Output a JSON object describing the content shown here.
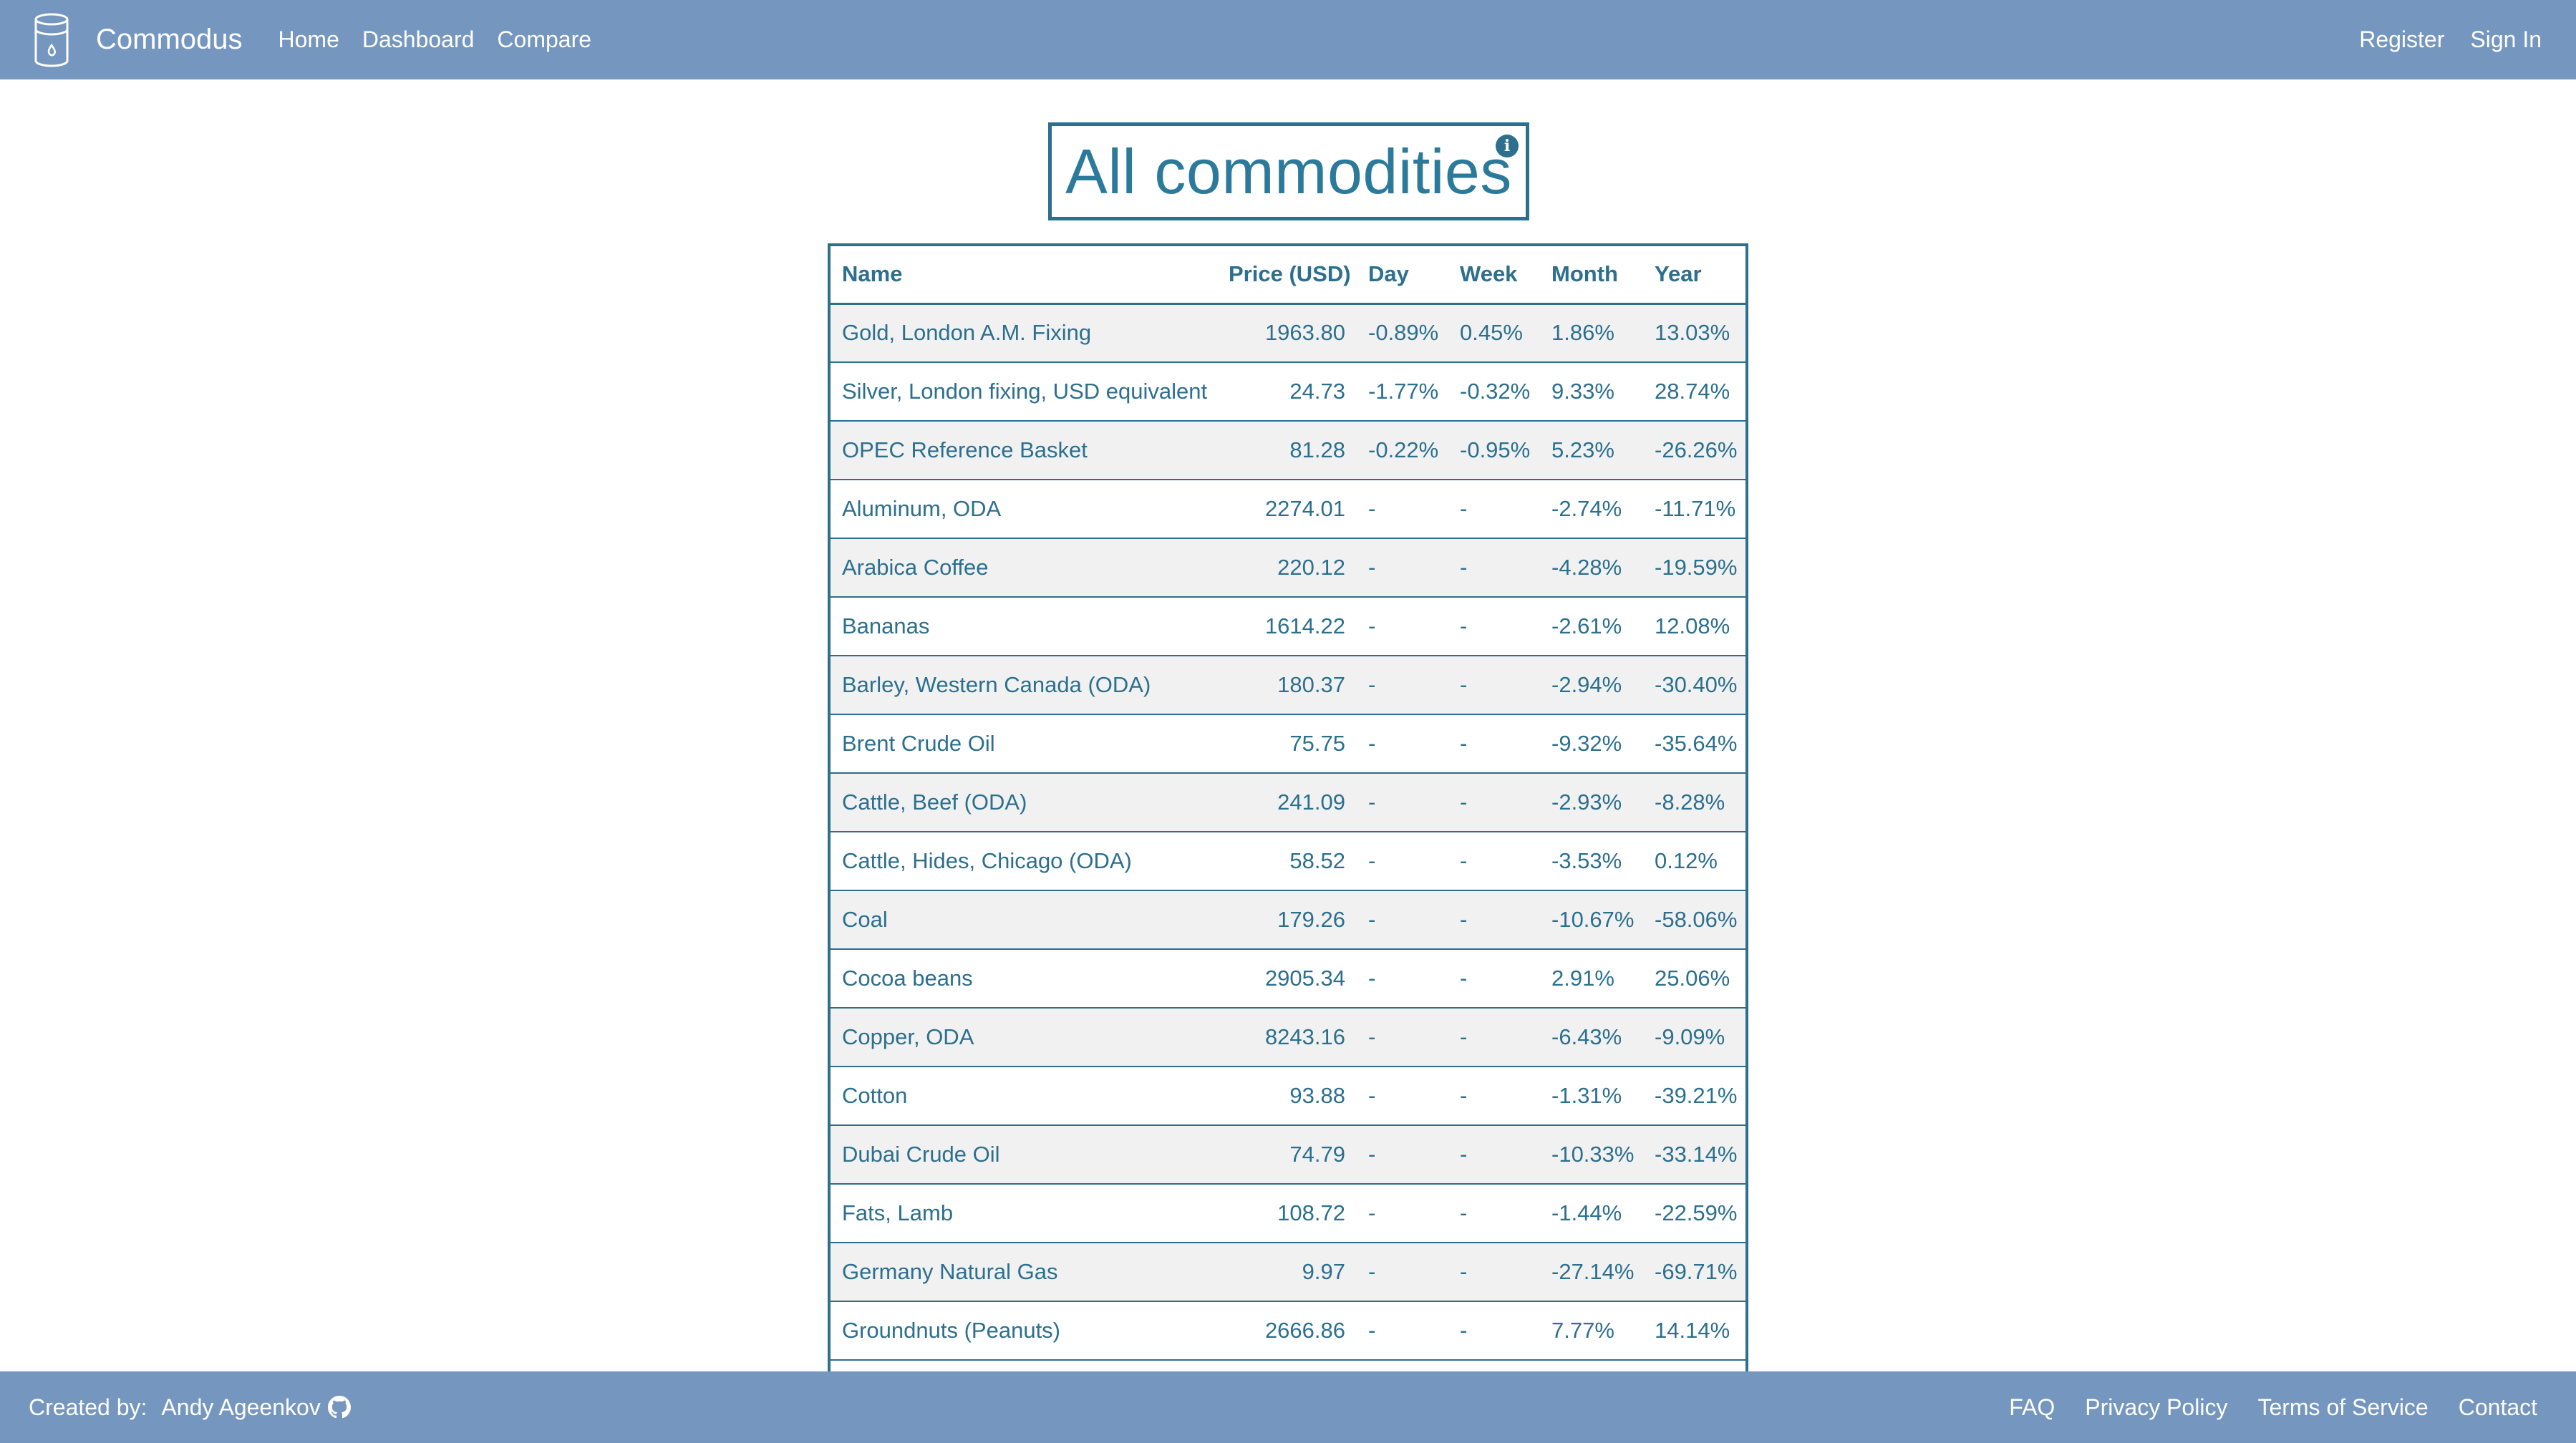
{
  "navbar": {
    "brand": "Commodus",
    "logo_icon": "database-icon",
    "links": [
      "Home",
      "Dashboard",
      "Compare"
    ],
    "right_links": [
      "Register",
      "Sign In"
    ]
  },
  "title": "All commodities",
  "info_icon": "i",
  "table": {
    "headers": [
      "Name",
      "Price (USD)",
      "Day",
      "Week",
      "Month",
      "Year"
    ],
    "rows": [
      {
        "name": "Gold, London A.M. Fixing",
        "price": "1963.80",
        "day": "-0.89%",
        "week": "0.45%",
        "month": "1.86%",
        "year": "13.03%"
      },
      {
        "name": "Silver, London fixing, USD equivalent",
        "price": "24.73",
        "day": "-1.77%",
        "week": "-0.32%",
        "month": "9.33%",
        "year": "28.74%"
      },
      {
        "name": "OPEC Reference Basket",
        "price": "81.28",
        "day": "-0.22%",
        "week": "-0.95%",
        "month": "5.23%",
        "year": "-26.26%"
      },
      {
        "name": "Aluminum, ODA",
        "price": "2274.01",
        "day": "-",
        "week": "-",
        "month": "-2.74%",
        "year": "-11.71%"
      },
      {
        "name": "Arabica Coffee",
        "price": "220.12",
        "day": "-",
        "week": "-",
        "month": "-4.28%",
        "year": "-19.59%"
      },
      {
        "name": "Bananas",
        "price": "1614.22",
        "day": "-",
        "week": "-",
        "month": "-2.61%",
        "year": "12.08%"
      },
      {
        "name": "Barley, Western Canada (ODA)",
        "price": "180.37",
        "day": "-",
        "week": "-",
        "month": "-2.94%",
        "year": "-30.40%"
      },
      {
        "name": "Brent Crude Oil",
        "price": "75.75",
        "day": "-",
        "week": "-",
        "month": "-9.32%",
        "year": "-35.64%"
      },
      {
        "name": "Cattle, Beef (ODA)",
        "price": "241.09",
        "day": "-",
        "week": "-",
        "month": "-2.93%",
        "year": "-8.28%"
      },
      {
        "name": "Cattle, Hides, Chicago (ODA)",
        "price": "58.52",
        "day": "-",
        "week": "-",
        "month": "-3.53%",
        "year": "0.12%"
      },
      {
        "name": "Coal",
        "price": "179.26",
        "day": "-",
        "week": "-",
        "month": "-10.67%",
        "year": "-58.06%"
      },
      {
        "name": "Cocoa beans",
        "price": "2905.34",
        "day": "-",
        "week": "-",
        "month": "2.91%",
        "year": "25.06%"
      },
      {
        "name": "Copper, ODA",
        "price": "8243.16",
        "day": "-",
        "week": "-",
        "month": "-6.43%",
        "year": "-9.09%"
      },
      {
        "name": "Cotton",
        "price": "93.88",
        "day": "-",
        "week": "-",
        "month": "-1.31%",
        "year": "-39.21%"
      },
      {
        "name": "Dubai Crude Oil",
        "price": "74.79",
        "day": "-",
        "week": "-",
        "month": "-10.33%",
        "year": "-33.14%"
      },
      {
        "name": "Fats, Lamb",
        "price": "108.72",
        "day": "-",
        "week": "-",
        "month": "-1.44%",
        "year": "-22.59%"
      },
      {
        "name": "Germany Natural Gas",
        "price": "9.97",
        "day": "-",
        "week": "-",
        "month": "-27.14%",
        "year": "-69.71%"
      },
      {
        "name": "Groundnuts (Peanuts)",
        "price": "2666.86",
        "day": "-",
        "week": "-",
        "month": "7.77%",
        "year": "14.14%"
      }
    ]
  },
  "footer": {
    "created_by_label": "Created by:",
    "author": "Andy Ageenkov",
    "author_icon": "github-icon",
    "links": [
      "FAQ",
      "Privacy Policy",
      "Terms of Service",
      "Contact"
    ]
  },
  "colors": {
    "navbar_bg": "#7597bf",
    "accent": "#2c6f8e",
    "row_stripe": "#f1f1f1"
  }
}
